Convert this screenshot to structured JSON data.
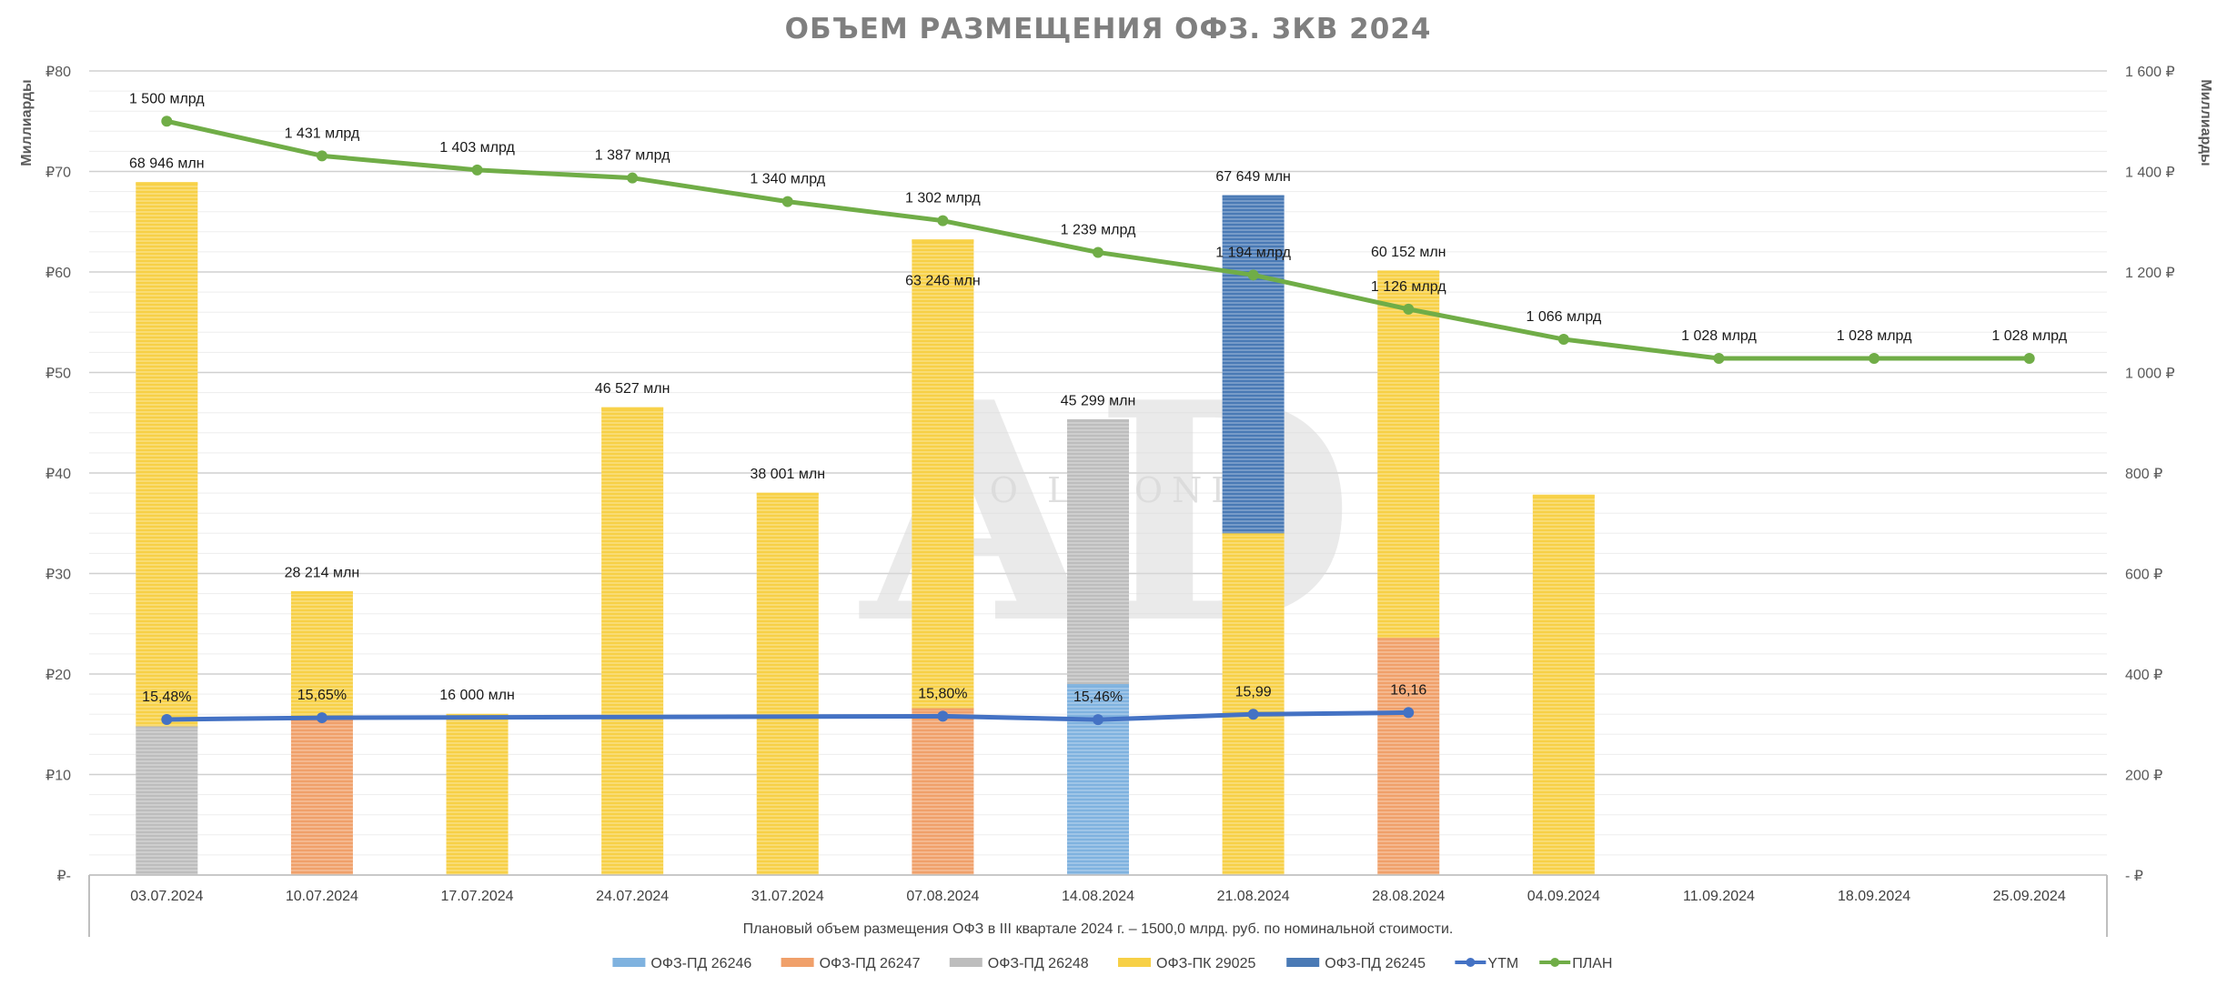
{
  "chart_data": {
    "type": "bar",
    "title": "ОБЪЕМ РАЗМЕЩЕНИЯ ОФЗ. 3КВ 2024",
    "ylabel_left": "Миллиарды",
    "ylabel_right": "Миллиарды",
    "ylim_left": [
      0,
      80
    ],
    "ylim_right": [
      0,
      1600
    ],
    "yticks_left": [
      "₽-",
      "₽10",
      "₽20",
      "₽30",
      "₽40",
      "₽50",
      "₽60",
      "₽70",
      "₽80"
    ],
    "yticks_right": [
      "-  ₽",
      "200 ₽",
      "400 ₽",
      "600 ₽",
      "800 ₽",
      "1 000 ₽",
      "1 200 ₽",
      "1 400 ₽",
      "1 600 ₽"
    ],
    "categories": [
      "03.07.2024",
      "10.07.2024",
      "17.07.2024",
      "24.07.2024",
      "31.07.2024",
      "07.08.2024",
      "14.08.2024",
      "21.08.2024",
      "28.08.2024",
      "04.09.2024",
      "11.09.2024",
      "18.09.2024",
      "25.09.2024"
    ],
    "x_caption": "Плановый объем размещения ОФЗ в III квартале 2024 г. – 1500,0 млрд. руб. по номинальной стоимости.",
    "grid": true,
    "legend_position": "bottom",
    "stack_series": [
      {
        "name": "ОФЗ-ПД 26246",
        "color": "#7fb2df",
        "values": [
          0,
          0,
          0,
          0,
          0,
          0,
          19.0,
          0,
          0,
          0,
          0,
          0,
          0
        ]
      },
      {
        "name": "ОФЗ-ПД 26247",
        "color": "#f0a06a",
        "values": [
          0,
          15.5,
          0,
          0,
          0,
          16.6,
          0,
          0,
          23.6,
          0,
          0,
          0,
          0
        ]
      },
      {
        "name": "ОФЗ-ПД 26248",
        "color": "#bdbdbd",
        "values": [
          14.8,
          0,
          0,
          0,
          0,
          0,
          26.3,
          0,
          0,
          0,
          0,
          0,
          0
        ]
      },
      {
        "name": "ОФЗ-ПК 29025",
        "color": "#f7d046",
        "values": [
          54.1,
          12.7,
          16.0,
          46.5,
          38.0,
          46.6,
          0,
          34.0,
          36.5,
          37.8,
          0,
          0,
          0
        ]
      },
      {
        "name": "ОФЗ-ПД 26245",
        "color": "#4a7ab5",
        "values": [
          0,
          0,
          0,
          0,
          0,
          0,
          0,
          33.6,
          0,
          0,
          0,
          0,
          0
        ]
      }
    ],
    "bar_total_labels": [
      "68 946 млн",
      "28 214 млн",
      "16 000 млн",
      "46 527 млн",
      "38 001 млн",
      "63 246 млн",
      "45 299 млн",
      "67 649 млн",
      "60 152 млн",
      "",
      "",
      "",
      ""
    ],
    "lines": [
      {
        "name": "YTM",
        "color": "#4472c4",
        "axis": "left",
        "x_index": [
          0,
          1,
          5,
          6,
          7,
          8
        ],
        "values": [
          15.48,
          15.65,
          15.8,
          15.46,
          15.99,
          16.16
        ],
        "labels": [
          "15,48%",
          "15,65%",
          "15,80%",
          "15,46%",
          "15,99",
          "16,16"
        ]
      },
      {
        "name": "ПЛАН",
        "color": "#70ad47",
        "axis": "right",
        "x_index": [
          0,
          1,
          2,
          3,
          4,
          5,
          6,
          7,
          8,
          9,
          10,
          11,
          12
        ],
        "values": [
          1500,
          1431,
          1403,
          1387,
          1340,
          1302,
          1239,
          1194,
          1126,
          1066,
          1028,
          1028,
          1028
        ],
        "labels": [
          "1 500 млрд",
          "1 431 млрд",
          "1 403 млрд",
          "1 387 млрд",
          "1 340 млрд",
          "1 302 млрд",
          "1 239 млрд",
          "1 194 млрд",
          "1 126 млрд",
          "1 066 млрд",
          "1 028 млрд",
          "1 028  млрд",
          "1 028 млрд"
        ]
      }
    ],
    "watermark": {
      "big": "AD",
      "small": "A  O  L  BONDS"
    }
  }
}
